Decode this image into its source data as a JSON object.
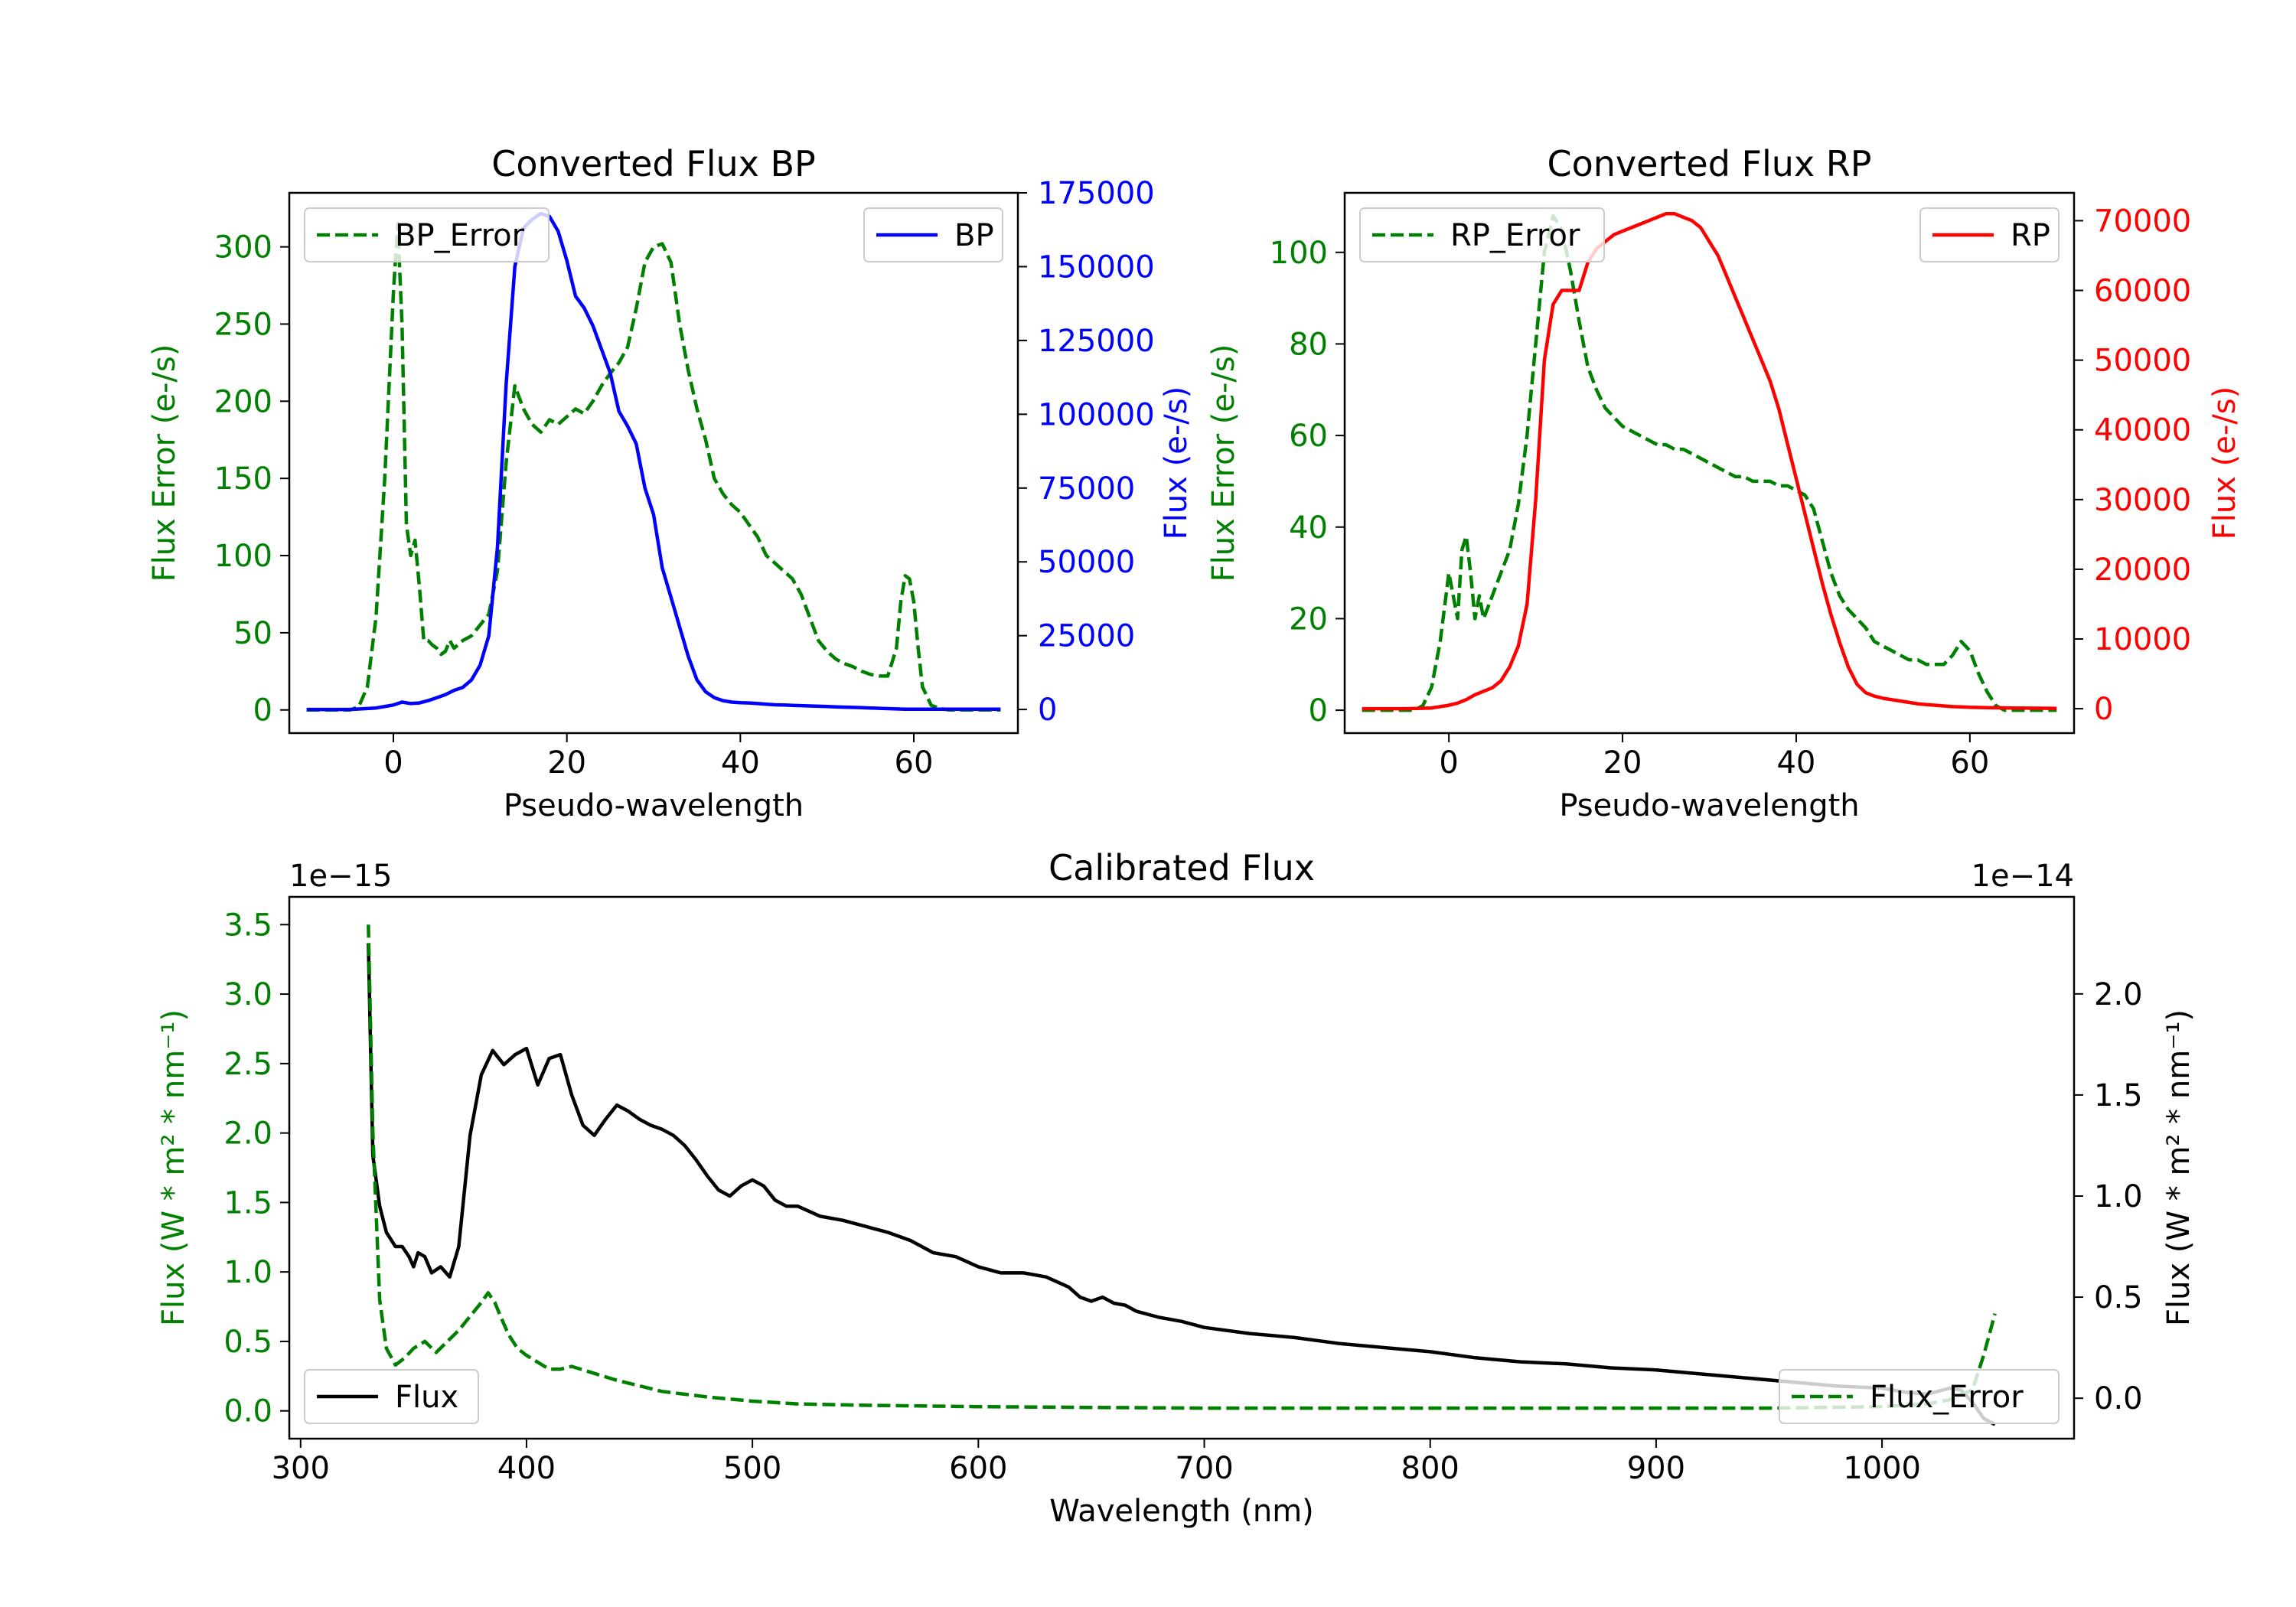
{
  "chart_data": [
    {
      "type": "line",
      "title": "Converted Flux BP",
      "xlabel": "Pseudo-wavelength",
      "xlim": [
        -12,
        72
      ],
      "xticks": [
        0,
        20,
        40,
        60
      ],
      "y_left": {
        "label": "Flux Error (e-/s)",
        "color": "#008000",
        "lim": [
          -15,
          335
        ],
        "ticks": [
          0,
          50,
          100,
          150,
          200,
          250,
          300
        ]
      },
      "y_right": {
        "label": "Flux (e-/s)",
        "color": "#0000ff",
        "lim": [
          -8000,
          175000
        ],
        "ticks": [
          0,
          25000,
          50000,
          75000,
          100000,
          125000,
          150000,
          175000
        ]
      },
      "series": [
        {
          "name": "BP_Error",
          "axis": "left",
          "color": "#008000",
          "dash": "dashed",
          "legend": "upper left",
          "x": [
            -10,
            -5,
            -4,
            -3,
            -2,
            -1,
            0,
            0.5,
            1,
            1.5,
            2,
            2.5,
            3,
            3.5,
            4,
            4.5,
            5,
            5.5,
            6,
            6.5,
            7,
            8,
            9,
            10,
            11,
            12,
            13,
            14,
            15,
            16,
            17,
            18,
            19,
            20,
            21,
            22,
            23,
            24,
            25,
            26,
            27,
            28,
            29,
            30,
            31,
            32,
            33,
            34,
            35,
            36,
            37,
            38,
            39,
            40,
            41,
            42,
            43,
            44,
            45,
            46,
            47,
            48,
            49,
            50,
            51,
            52,
            53,
            54,
            55,
            56,
            57,
            58,
            58.5,
            59,
            59.5,
            60,
            60.5,
            61,
            62,
            63,
            64,
            65,
            70
          ],
          "values": [
            0,
            0,
            2,
            15,
            60,
            150,
            270,
            315,
            250,
            120,
            100,
            110,
            80,
            45,
            45,
            42,
            40,
            36,
            38,
            45,
            40,
            45,
            48,
            55,
            62,
            90,
            160,
            210,
            195,
            185,
            180,
            188,
            185,
            190,
            195,
            192,
            200,
            210,
            218,
            225,
            235,
            260,
            290,
            300,
            302,
            290,
            250,
            220,
            195,
            175,
            150,
            140,
            133,
            128,
            120,
            112,
            100,
            95,
            90,
            85,
            75,
            60,
            45,
            38,
            33,
            30,
            28,
            25,
            23,
            22,
            22,
            40,
            70,
            87,
            85,
            70,
            40,
            15,
            3,
            1,
            0,
            0,
            0
          ]
        },
        {
          "name": "BP",
          "axis": "right",
          "color": "#0000ff",
          "dash": "solid",
          "legend": "upper right",
          "x": [
            -10,
            -5,
            -2,
            0,
            1,
            2,
            3,
            4,
            5,
            6,
            7,
            8,
            9,
            10,
            11,
            12,
            13,
            14,
            15,
            16,
            17,
            18,
            19,
            20,
            21,
            22,
            23,
            24,
            25,
            26,
            27,
            28,
            29,
            30,
            31,
            32,
            33,
            34,
            35,
            36,
            37,
            38,
            39,
            40,
            41,
            42,
            43,
            44,
            45,
            46,
            47,
            48,
            49,
            50,
            51,
            52,
            53,
            54,
            55,
            56,
            57,
            58,
            59,
            60,
            62,
            64,
            66,
            68,
            70
          ],
          "values": [
            0,
            0,
            500,
            1500,
            2500,
            2000,
            2200,
            3000,
            4000,
            5000,
            6500,
            7500,
            10000,
            15000,
            25000,
            55000,
            110000,
            150000,
            163000,
            166000,
            168000,
            167000,
            162000,
            152000,
            140000,
            136000,
            130000,
            122000,
            114000,
            101000,
            96000,
            90000,
            75000,
            66000,
            48000,
            38000,
            28000,
            18000,
            10000,
            6000,
            4000,
            3000,
            2500,
            2300,
            2200,
            2000,
            1800,
            1600,
            1500,
            1400,
            1300,
            1200,
            1100,
            1000,
            900,
            800,
            700,
            600,
            500,
            400,
            300,
            200,
            100,
            100,
            100,
            100,
            100,
            100,
            100
          ]
        }
      ]
    },
    {
      "type": "line",
      "title": "Converted Flux RP",
      "xlabel": "Pseudo-wavelength",
      "xlim": [
        -12,
        72
      ],
      "xticks": [
        0,
        20,
        40,
        60
      ],
      "y_left": {
        "label": "Flux Error (e-/s)",
        "color": "#008000",
        "lim": [
          -5,
          113
        ],
        "ticks": [
          0,
          20,
          40,
          60,
          80,
          100
        ]
      },
      "y_right": {
        "label": "Flux (e-/s)",
        "color": "#ff0000",
        "lim": [
          -3500,
          74000
        ],
        "ticks": [
          0,
          10000,
          20000,
          30000,
          40000,
          50000,
          60000,
          70000
        ]
      },
      "series": [
        {
          "name": "RP_Error",
          "axis": "left",
          "color": "#008000",
          "dash": "dashed",
          "legend": "upper left",
          "x": [
            -10,
            -4,
            -3,
            -2,
            -1,
            0,
            0.5,
            1,
            1.5,
            2,
            2.5,
            3,
            3.5,
            4,
            5,
            6,
            7,
            8,
            9,
            10,
            11,
            12,
            13,
            14,
            15,
            16,
            17,
            18,
            19,
            20,
            21,
            22,
            23,
            24,
            25,
            26,
            27,
            28,
            29,
            30,
            31,
            32,
            33,
            34,
            35,
            36,
            37,
            38,
            39,
            40,
            41,
            42,
            43,
            44,
            45,
            46,
            47,
            48,
            49,
            50,
            51,
            52,
            53,
            54,
            55,
            56,
            57,
            58,
            59,
            60,
            61,
            62,
            63,
            64,
            70
          ],
          "values": [
            0,
            0,
            1,
            5,
            15,
            30,
            25,
            20,
            35,
            38,
            30,
            20,
            25,
            20,
            25,
            30,
            35,
            45,
            60,
            80,
            100,
            108,
            105,
            96,
            85,
            75,
            70,
            66,
            64,
            62,
            61,
            60,
            59,
            58,
            58,
            57,
            57,
            56,
            55,
            54,
            53,
            52,
            51,
            51,
            50,
            50,
            50,
            49,
            49,
            48,
            47,
            44,
            37,
            30,
            25,
            22,
            20,
            18,
            15,
            14,
            13,
            12,
            11,
            11,
            10,
            10,
            10,
            12,
            15,
            13,
            8,
            4,
            1,
            0,
            0
          ]
        },
        {
          "name": "RP",
          "axis": "right",
          "color": "#ff0000",
          "dash": "solid",
          "legend": "upper right",
          "x": [
            -10,
            -5,
            -2,
            0,
            1,
            2,
            3,
            4,
            5,
            6,
            7,
            8,
            9,
            10,
            11,
            12,
            13,
            14,
            15,
            16,
            17,
            18,
            19,
            20,
            21,
            22,
            23,
            24,
            25,
            26,
            27,
            28,
            29,
            30,
            31,
            32,
            33,
            34,
            35,
            36,
            37,
            38,
            39,
            40,
            41,
            42,
            43,
            44,
            45,
            46,
            47,
            48,
            49,
            50,
            51,
            52,
            53,
            54,
            55,
            56,
            57,
            58,
            59,
            60,
            62,
            65,
            70
          ],
          "values": [
            0,
            0,
            100,
            500,
            800,
            1300,
            2000,
            2500,
            3000,
            4000,
            6000,
            9000,
            15000,
            30000,
            50000,
            58000,
            60000,
            60000,
            60000,
            64000,
            66000,
            67000,
            68000,
            68500,
            69000,
            69500,
            70000,
            70500,
            71000,
            71000,
            70500,
            70000,
            69000,
            67000,
            65000,
            62000,
            59000,
            56000,
            53000,
            50000,
            47000,
            43000,
            38000,
            33000,
            28000,
            23000,
            18000,
            13500,
            9500,
            6000,
            3500,
            2300,
            1800,
            1500,
            1300,
            1100,
            900,
            700,
            600,
            500,
            400,
            300,
            250,
            200,
            150,
            100,
            50
          ]
        }
      ]
    },
    {
      "type": "line",
      "title": "Calibrated Flux",
      "xlabel": "Wavelength (nm)",
      "xlim": [
        295,
        1085
      ],
      "xticks": [
        300,
        400,
        500,
        600,
        700,
        800,
        900,
        1000
      ],
      "y_left": {
        "label": "Flux (W * m² * nm⁻¹)",
        "color": "#008000",
        "offset_text": "1e−15",
        "lim": [
          -0.2,
          3.7
        ],
        "ticks": [
          0.0,
          0.5,
          1.0,
          1.5,
          2.0,
          2.5,
          3.0,
          3.5
        ],
        "ticklabels": [
          "0.0",
          "0.5",
          "1.0",
          "1.5",
          "2.0",
          "2.5",
          "3.0",
          "3.5"
        ]
      },
      "y_right": {
        "label": "Flux (W * m² * nm⁻¹)",
        "color": "#000000",
        "offset_text": "1e−14",
        "lim": [
          -0.2,
          2.48
        ],
        "ticks": [
          0.0,
          0.5,
          1.0,
          1.5,
          2.0
        ],
        "ticklabels": [
          "0.0",
          "0.5",
          "1.0",
          "1.5",
          "2.0"
        ]
      },
      "series": [
        {
          "name": "Flux",
          "axis": "right",
          "color": "#000000",
          "dash": "solid",
          "legend": "lower left",
          "x": [
            330,
            332,
            335,
            338,
            342,
            345,
            348,
            350,
            352,
            355,
            358,
            362,
            366,
            370,
            375,
            380,
            385,
            390,
            395,
            400,
            405,
            410,
            415,
            420,
            425,
            430,
            435,
            440,
            445,
            450,
            455,
            460,
            465,
            470,
            475,
            480,
            485,
            490,
            495,
            500,
            505,
            510,
            515,
            520,
            530,
            540,
            550,
            560,
            570,
            580,
            590,
            600,
            610,
            620,
            630,
            640,
            645,
            650,
            655,
            660,
            665,
            670,
            680,
            690,
            700,
            720,
            740,
            760,
            780,
            800,
            820,
            840,
            860,
            880,
            900,
            920,
            940,
            960,
            980,
            1000,
            1010,
            1020,
            1030,
            1035,
            1040,
            1045,
            1050
          ],
          "values": [
            2.25,
            1.2,
            0.95,
            0.82,
            0.75,
            0.75,
            0.7,
            0.65,
            0.72,
            0.7,
            0.62,
            0.65,
            0.6,
            0.75,
            1.3,
            1.6,
            1.72,
            1.65,
            1.7,
            1.73,
            1.55,
            1.68,
            1.7,
            1.5,
            1.35,
            1.3,
            1.38,
            1.45,
            1.42,
            1.38,
            1.35,
            1.33,
            1.3,
            1.25,
            1.18,
            1.1,
            1.03,
            1.0,
            1.05,
            1.08,
            1.05,
            0.98,
            0.95,
            0.95,
            0.9,
            0.88,
            0.85,
            0.82,
            0.78,
            0.72,
            0.7,
            0.65,
            0.62,
            0.62,
            0.6,
            0.55,
            0.5,
            0.48,
            0.5,
            0.47,
            0.46,
            0.43,
            0.4,
            0.38,
            0.35,
            0.32,
            0.3,
            0.27,
            0.25,
            0.23,
            0.2,
            0.18,
            0.17,
            0.15,
            0.14,
            0.12,
            0.1,
            0.08,
            0.06,
            0.05,
            0.03,
            0.02,
            0.05,
            0.04,
            -0.02,
            -0.1,
            -0.13
          ]
        },
        {
          "name": "Flux_Error",
          "axis": "left",
          "color": "#008000",
          "dash": "dashed",
          "legend": "lower right",
          "x": [
            330,
            332,
            335,
            338,
            342,
            346,
            350,
            355,
            360,
            365,
            370,
            375,
            380,
            383,
            386,
            388,
            392,
            396,
            400,
            405,
            410,
            415,
            420,
            430,
            440,
            450,
            460,
            470,
            480,
            500,
            520,
            550,
            600,
            650,
            700,
            750,
            800,
            850,
            900,
            950,
            1000,
            1020,
            1030,
            1040,
            1045,
            1050
          ],
          "values": [
            3.5,
            2.0,
            0.8,
            0.45,
            0.33,
            0.38,
            0.45,
            0.5,
            0.42,
            0.5,
            0.58,
            0.68,
            0.78,
            0.85,
            0.78,
            0.7,
            0.55,
            0.45,
            0.4,
            0.35,
            0.3,
            0.3,
            0.32,
            0.27,
            0.22,
            0.18,
            0.14,
            0.12,
            0.1,
            0.07,
            0.05,
            0.04,
            0.03,
            0.025,
            0.02,
            0.02,
            0.02,
            0.02,
            0.02,
            0.02,
            0.03,
            0.05,
            0.08,
            0.15,
            0.4,
            0.7
          ]
        }
      ]
    }
  ]
}
